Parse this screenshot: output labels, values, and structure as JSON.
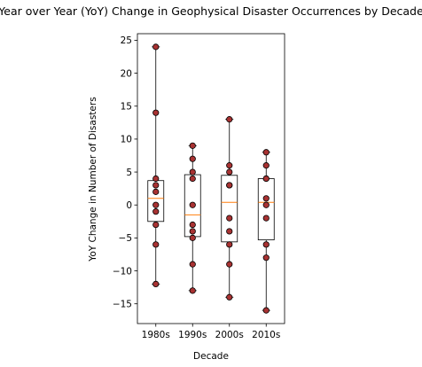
{
  "chart_data": {
    "type": "box",
    "title": "Year over Year (YoY) Change in Geophysical Disaster Occurrences by Decade",
    "xlabel": "Decade",
    "ylabel": "YoY Change in Number of Disasters",
    "categories": [
      "1980s",
      "1990s",
      "2000s",
      "2010s"
    ],
    "ylim": [
      -18,
      26
    ],
    "yticks": [
      -15,
      -10,
      -5,
      0,
      5,
      10,
      15,
      20,
      25
    ],
    "grid": false,
    "legend": "none",
    "boxes": [
      {
        "category": "1980s",
        "whisker_low": -12,
        "q1": -2.5,
        "median": 1.0,
        "q3": 3.7,
        "whisker_high": 24
      },
      {
        "category": "1990s",
        "whisker_low": -13,
        "q1": -4.8,
        "median": -1.5,
        "q3": 4.6,
        "whisker_high": 9
      },
      {
        "category": "2000s",
        "whisker_low": -14,
        "q1": -5.6,
        "median": 0.4,
        "q3": 4.5,
        "whisker_high": 13
      },
      {
        "category": "2010s",
        "whisker_low": -16,
        "q1": -5.3,
        "median": 0.4,
        "q3": 4.0,
        "whisker_high": 8
      }
    ],
    "points": [
      {
        "category": "1980s",
        "values": [
          24,
          14,
          4,
          3,
          2,
          0,
          -1,
          -3,
          -6,
          -12
        ]
      },
      {
        "category": "1990s",
        "values": [
          9,
          7,
          5,
          4,
          0,
          -3,
          -4,
          -5,
          -9,
          -13
        ]
      },
      {
        "category": "2000s",
        "values": [
          13,
          6,
          5,
          3,
          3,
          -2,
          -4,
          -6,
          -9,
          -14
        ]
      },
      {
        "category": "2010s",
        "values": [
          8,
          6,
          4,
          4,
          1,
          0,
          -2,
          -6,
          -8,
          -16
        ]
      }
    ],
    "colors": {
      "box_edge": "#000000",
      "median": "#ff7f0e",
      "point_fill": "#a83232",
      "point_edge": "#000000"
    }
  }
}
